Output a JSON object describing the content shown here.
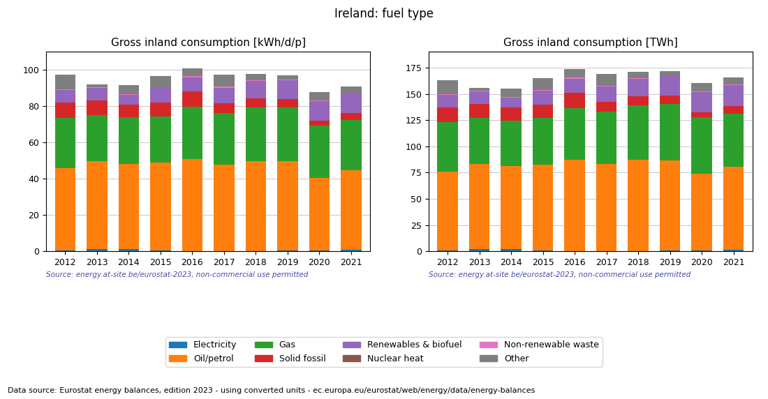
{
  "title": "Ireland: fuel type",
  "annotations": [
    "Data source: Eurostat energy balances, edition 2023 - using converted units - ec.europa.eu/eurostat/web/energy/data/energy-balances"
  ],
  "legend": "lower center",
  "chart_data": [
    {
      "type": "bar",
      "stacked": true,
      "grid": true,
      "title": "Gross inland consumption [kWh/d/p]",
      "annotations": [
        "Source: energy.at-site.be/eurostat-2023, non-commercial use permitted"
      ],
      "categories": [
        "2012",
        "2013",
        "2014",
        "2015",
        "2016",
        "2017",
        "2018",
        "2019",
        "2020",
        "2021"
      ],
      "ylim": [
        0,
        110
      ],
      "yticks": [
        0,
        20,
        40,
        60,
        80,
        100
      ],
      "series": [
        {
          "name": "Electricity",
          "values": [
            0.5,
            1.2,
            1.3,
            0.5,
            0.3,
            0.3,
            0.3,
            0.4,
            0.4,
            0.8
          ]
        },
        {
          "name": "Oil/petrol",
          "values": [
            45.5,
            48.5,
            47.0,
            48.5,
            50.5,
            47.5,
            49.5,
            49.5,
            40.0,
            44.0
          ]
        },
        {
          "name": "Gas",
          "values": [
            27.5,
            25.5,
            25.5,
            25.5,
            29.0,
            28.5,
            29.5,
            29.5,
            29.0,
            27.5
          ]
        },
        {
          "name": "Solid fossil",
          "values": [
            8.5,
            8.0,
            7.0,
            7.5,
            8.5,
            5.5,
            5.0,
            4.5,
            2.5,
            4.0
          ]
        },
        {
          "name": "Renewables & biofuel",
          "values": [
            7.0,
            7.0,
            5.5,
            8.0,
            7.5,
            8.5,
            9.5,
            10.5,
            11.0,
            11.0
          ]
        },
        {
          "name": "Nuclear heat",
          "values": [
            0.0,
            0.0,
            0.0,
            0.0,
            0.0,
            0.0,
            0.0,
            0.0,
            0.0,
            0.0
          ]
        },
        {
          "name": "Non-renewable waste",
          "values": [
            0.3,
            0.3,
            0.3,
            0.3,
            0.8,
            0.5,
            0.5,
            0.3,
            0.3,
            0.3
          ]
        },
        {
          "name": "Other",
          "values": [
            8.0,
            1.5,
            5.0,
            6.5,
            4.5,
            6.5,
            3.5,
            2.5,
            4.5,
            3.5
          ]
        }
      ]
    },
    {
      "type": "bar",
      "stacked": true,
      "grid": true,
      "title": "Gross inland consumption [TWh]",
      "annotations": [
        "Source: energy.at-site.be/eurostat-2023, non-commercial use permitted"
      ],
      "categories": [
        "2012",
        "2013",
        "2014",
        "2015",
        "2016",
        "2017",
        "2018",
        "2019",
        "2020",
        "2021"
      ],
      "ylim": [
        0,
        190
      ],
      "yticks": [
        0,
        25,
        50,
        75,
        100,
        125,
        150,
        175
      ],
      "series": [
        {
          "name": "Electricity",
          "values": [
            0.9,
            2.0,
            2.3,
            0.8,
            0.5,
            0.5,
            0.5,
            0.7,
            0.7,
            1.4
          ]
        },
        {
          "name": "Oil/petrol",
          "values": [
            75.0,
            81.0,
            79.0,
            82.0,
            86.5,
            82.5,
            86.5,
            86.0,
            73.5,
            79.5
          ]
        },
        {
          "name": "Gas",
          "values": [
            47.0,
            44.0,
            43.5,
            44.0,
            49.5,
            50.0,
            52.0,
            53.5,
            53.5,
            50.0
          ]
        },
        {
          "name": "Solid fossil",
          "values": [
            14.0,
            13.5,
            12.0,
            13.0,
            14.5,
            9.5,
            8.5,
            8.0,
            4.5,
            7.5
          ]
        },
        {
          "name": "Renewables & biofuel",
          "values": [
            12.0,
            12.0,
            9.5,
            13.5,
            13.5,
            14.5,
            16.5,
            18.5,
            19.5,
            20.0
          ]
        },
        {
          "name": "Nuclear heat",
          "values": [
            0.0,
            0.0,
            0.0,
            0.0,
            0.0,
            0.0,
            0.0,
            0.0,
            0.0,
            0.0
          ]
        },
        {
          "name": "Non-renewable waste",
          "values": [
            0.5,
            0.5,
            0.5,
            0.5,
            1.3,
            0.8,
            0.8,
            0.5,
            0.5,
            0.5
          ]
        },
        {
          "name": "Other",
          "values": [
            13.5,
            2.5,
            8.5,
            11.0,
            8.0,
            11.0,
            6.5,
            4.5,
            8.0,
            6.5
          ]
        }
      ]
    }
  ]
}
